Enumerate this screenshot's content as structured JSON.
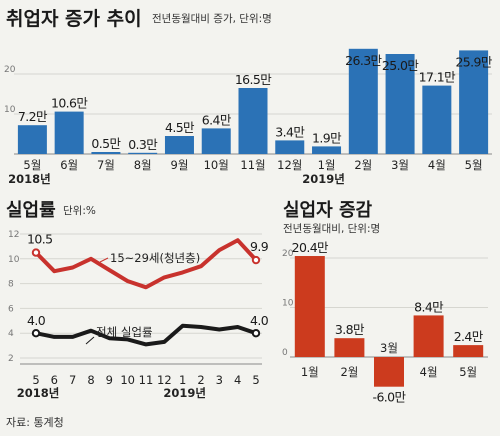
{
  "chart_data": [
    {
      "type": "bar",
      "title": "취업자 증가 추이",
      "subtitle": "전년동월대비 증가, 단위:명",
      "categories": [
        "5월",
        "6월",
        "7월",
        "8월",
        "9월",
        "10월",
        "11월",
        "12월",
        "1월",
        "2월",
        "3월",
        "4월",
        "5월"
      ],
      "values": [
        7.2,
        10.6,
        0.5,
        0.3,
        4.5,
        6.4,
        16.5,
        3.4,
        1.9,
        26.3,
        25.0,
        17.1,
        25.9
      ],
      "value_labels": [
        "7.2만",
        "10.6만",
        "0.5만",
        "0.3만",
        "4.5만",
        "6.4만",
        "16.5만",
        "3.4만",
        "1.9만",
        "26.3만",
        "25.0만",
        "17.1만",
        "25.9만"
      ],
      "year_labels": [
        {
          "after_index": 0,
          "label": "2018년"
        },
        {
          "after_index": 8,
          "label": "2019년"
        }
      ],
      "yticks": [
        10,
        20
      ],
      "ylim": [
        0,
        30
      ],
      "colors": {
        "bar": "#2b72b6",
        "bar_light": "#4f93cf"
      }
    },
    {
      "type": "line",
      "title": "실업률",
      "subtitle": "단위:%",
      "x": [
        "5",
        "6",
        "7",
        "8",
        "9",
        "10",
        "11",
        "12",
        "1",
        "2",
        "3",
        "4",
        "5"
      ],
      "year_labels": [
        {
          "after_index": 0,
          "label": "2018년"
        },
        {
          "after_index": 8,
          "label": "2019년"
        }
      ],
      "series": [
        {
          "name": "15~29세(청년층)",
          "values": [
            10.5,
            9.0,
            9.3,
            10.0,
            9.1,
            8.2,
            7.7,
            8.5,
            8.9,
            9.4,
            10.7,
            11.5,
            9.9
          ],
          "start_label": "10.5",
          "end_label": "9.9",
          "color": "#c8322d"
        },
        {
          "name": "전체 실업률",
          "values": [
            4.0,
            3.7,
            3.7,
            4.2,
            3.6,
            3.5,
            3.1,
            3.3,
            4.6,
            4.5,
            4.3,
            4.5,
            4.0
          ],
          "start_label": "4.0",
          "end_label": "4.0",
          "color": "#1a1a1a"
        }
      ],
      "yticks": [
        2,
        4,
        6,
        8,
        10,
        12
      ],
      "ylim": [
        2,
        12
      ]
    },
    {
      "type": "bar",
      "title": "실업자 증감",
      "subtitle": "전년동월대비, 단위:명",
      "categories": [
        "1월",
        "2월",
        "3월",
        "4월",
        "5월"
      ],
      "values": [
        20.4,
        3.8,
        -6.0,
        8.4,
        2.4
      ],
      "value_labels": [
        "20.4만",
        "3.8만",
        "-6.0만",
        "8.4만",
        "2.4만"
      ],
      "yticks": [
        0,
        10,
        20
      ],
      "ylim": [
        -6,
        22
      ],
      "colors": {
        "bar": "#cc3b1e"
      }
    }
  ],
  "source": "자료: 통계청"
}
